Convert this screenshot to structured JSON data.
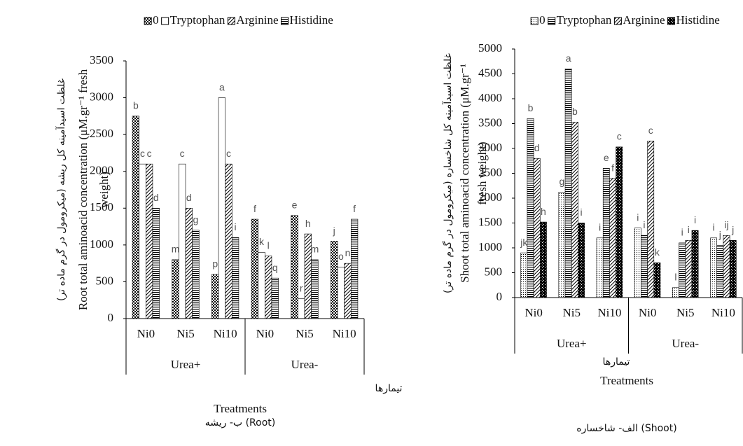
{
  "chart_data": [
    {
      "type": "bar",
      "legend_position": "top",
      "ylabel": "غلظت اسیدآمینه کل ریشه (میکرومول در گرم ماده تر)",
      "ylabel_en": [
        "Root total aminoacid concentration (μM.gr⁻¹ fresh",
        "weight)"
      ],
      "categories": [
        "Ni0",
        "Ni5",
        "Ni10",
        "Ni0",
        "Ni5",
        "Ni10"
      ],
      "group_labels": [
        "Urea+",
        "Urea-"
      ],
      "xlabel": "تیمارها",
      "xlabel_en": "Treatments",
      "caption": "ب- ریشه (Root)",
      "ylim": [
        0,
        3500
      ],
      "yticks": [
        0,
        500,
        1000,
        1500,
        2000,
        2500,
        3000,
        3500
      ],
      "series": [
        {
          "name": "0",
          "color": "#000000",
          "pattern": "crosshatch",
          "values": [
            2750,
            800,
            600,
            1350,
            1400,
            1050
          ],
          "letters": [
            "b",
            "m",
            "p",
            "f",
            "e",
            "j"
          ]
        },
        {
          "name": "Tryptophan",
          "color": "#000000",
          "pattern": "none",
          "values": [
            2100,
            2100,
            3000,
            900,
            270,
            700
          ],
          "letters": [
            "c",
            "c",
            "a",
            "k",
            "r",
            "o"
          ]
        },
        {
          "name": "Arginine",
          "color": "#000000",
          "pattern": "diagonal",
          "values": [
            2100,
            1500,
            2100,
            850,
            1150,
            750
          ],
          "letters": [
            "c",
            "d",
            "c",
            "l",
            "h",
            "n"
          ]
        },
        {
          "name": "Histidine",
          "color": "#000000",
          "pattern": "horizontal",
          "values": [
            1500,
            1200,
            1100,
            550,
            800,
            1350
          ],
          "letters": [
            "d",
            "g",
            "i",
            "q",
            "m",
            "f"
          ]
        }
      ]
    },
    {
      "type": "bar",
      "legend_position": "top",
      "ylabel": "غلظت اسیدآمینه کل شاخساره (میکرومول در گرم ماده تر)",
      "ylabel_en": [
        "Shoot total aminoacid concentration (μM.gr⁻¹",
        "fresh weight)"
      ],
      "categories": [
        "Ni0",
        "Ni5",
        "Ni10",
        "Ni0",
        "Ni5",
        "Ni10"
      ],
      "group_labels": [
        "Urea+",
        "Urea-"
      ],
      "xlabel": "تیمارها",
      "xlabel_en": "Treatments",
      "caption": "الف- شاخساره (Shoot)",
      "ylim": [
        0,
        5000
      ],
      "yticks": [
        0,
        500,
        1000,
        1500,
        2000,
        2500,
        3000,
        3500,
        4000,
        4500,
        5000
      ],
      "series": [
        {
          "name": "0",
          "color": "#000000",
          "pattern": "dots",
          "values": [
            900,
            2120,
            1200,
            1400,
            200,
            1200
          ],
          "letters": [
            "jk",
            "g",
            "i",
            "i",
            "l",
            "i"
          ]
        },
        {
          "name": "Tryptophan",
          "color": "#000000",
          "pattern": "horizontal",
          "values": [
            3600,
            4600,
            2600,
            1250,
            1100,
            1050
          ],
          "letters": [
            "b",
            "a",
            "e",
            "i",
            "i",
            "j"
          ]
        },
        {
          "name": "Arginine",
          "color": "#000000",
          "pattern": "diagonal",
          "values": [
            2800,
            3530,
            2400,
            3150,
            1150,
            1250
          ],
          "letters": [
            "d",
            "b",
            "f",
            "c",
            "i",
            "ij"
          ]
        },
        {
          "name": "Histidine",
          "color": "#000000",
          "pattern": "darkcheck",
          "values": [
            1520,
            1500,
            3030,
            700,
            1350,
            1150
          ],
          "letters": [
            "h",
            "i",
            "c",
            "k",
            "i",
            "j"
          ]
        }
      ]
    }
  ]
}
